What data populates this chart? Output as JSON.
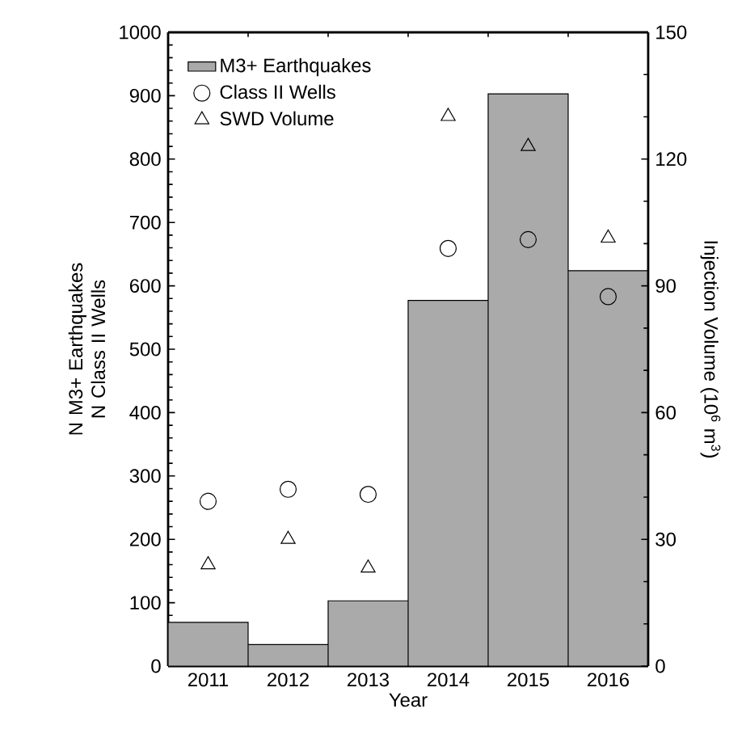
{
  "chart_data": {
    "type": "bar",
    "xlabel": "Year",
    "ylabel": "N M3+ Earthquakes N Class II Wells",
    "y2label": "Injection Volume (10$^{6}$ m$^{3}$)",
    "categories": [
      "2011",
      "2012",
      "2013",
      "2014",
      "2015",
      "2016"
    ],
    "series": [
      {
        "name": "M3+ Earthquakes",
        "color": "#aaaaab",
        "values": [
          69,
          34,
          103,
          577,
          903,
          624
        ]
      },
      {
        "name": "Class II Wells",
        "type": "scatter",
        "marker": "circle",
        "color": "#000000",
        "values": [
          260,
          279,
          271,
          659,
          673,
          583
        ]
      },
      {
        "name": "SWD Volume",
        "type": "scatter",
        "marker": "triangle",
        "axis": "y2",
        "color": "#000000",
        "values": [
          24.0,
          30.0,
          23.2,
          130.1,
          123.0,
          101.3
        ]
      }
    ],
    "ylim": [
      0,
      1000
    ],
    "yticks": [
      0,
      100,
      200,
      300,
      400,
      500,
      600,
      700,
      800,
      900,
      1000
    ],
    "y2lim": [
      0,
      150
    ],
    "y2ticks": [
      0,
      30,
      60,
      90,
      120,
      150
    ],
    "legend": "top left",
    "grid": false
  }
}
